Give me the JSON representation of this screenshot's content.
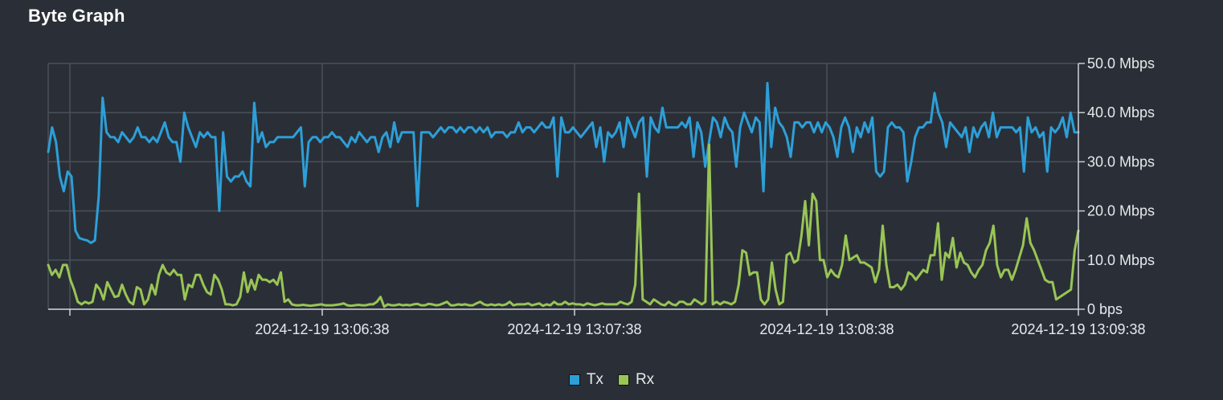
{
  "title": "Byte Graph",
  "chart_data": {
    "type": "line",
    "ylim": [
      0,
      50
    ],
    "y_ticks": [
      0,
      10,
      20,
      30,
      40,
      50
    ],
    "y_tick_labels": [
      "0 bps",
      "10.0 Mbps",
      "20.0 Mbps",
      "30.0 Mbps",
      "40.0 Mbps",
      "50.0 Mbps"
    ],
    "y_axis_side": "right",
    "x_ticks": [
      "2024-12-19 13:06:38",
      "2024-12-19 13:07:38",
      "2024-12-19 13:08:38",
      "2024-12-19 13:09:38"
    ],
    "grid": true,
    "legend_position": "bottom-center",
    "series": [
      {
        "name": "Tx",
        "color": "#2d9fd8",
        "values": [
          32,
          37,
          34,
          27,
          24,
          28,
          27,
          16,
          14.5,
          14.2,
          14,
          13.5,
          14,
          23,
          43,
          36,
          35,
          35,
          34,
          36,
          35,
          34,
          35,
          37,
          35,
          35,
          34,
          35,
          34,
          36,
          38,
          35,
          34,
          34,
          30,
          40,
          37,
          35,
          33,
          36,
          35,
          36,
          35,
          35,
          20,
          36,
          27,
          26,
          27,
          27,
          28,
          26,
          25,
          42,
          34,
          36,
          33,
          34,
          34,
          35,
          35,
          35,
          35,
          35,
          36,
          37,
          25,
          34,
          35,
          35,
          34,
          35,
          35,
          36,
          35,
          35,
          34,
          33,
          35,
          34,
          36,
          35,
          34,
          35,
          35,
          32,
          35,
          36,
          33,
          38,
          34,
          36,
          36,
          36,
          36,
          21,
          36,
          36,
          36,
          35,
          36,
          37,
          36,
          37,
          37,
          36,
          37,
          36,
          37,
          37,
          36,
          37,
          36,
          37,
          35,
          36,
          36,
          36,
          35,
          36,
          36,
          38,
          36,
          37,
          37,
          36,
          37,
          38,
          37,
          37,
          39,
          27,
          39,
          36,
          36,
          37,
          36,
          35,
          36,
          37,
          38,
          33,
          37,
          30,
          36,
          35,
          36,
          38,
          33,
          39,
          37,
          35,
          38,
          39,
          27,
          39,
          37,
          36,
          41,
          37,
          37,
          37,
          37,
          38,
          37,
          39,
          31,
          38,
          36,
          29,
          34,
          39,
          38,
          35,
          39,
          37,
          36,
          29,
          37,
          40,
          38,
          36,
          39,
          38,
          24,
          46,
          33,
          41,
          38,
          37,
          35,
          31,
          38,
          38,
          37,
          38,
          38,
          36,
          38,
          36,
          38,
          37,
          35,
          31,
          37,
          39,
          37,
          32,
          37,
          35,
          38,
          36,
          39,
          28,
          27,
          28,
          37,
          38,
          37,
          37,
          36,
          26,
          30,
          35,
          37,
          37,
          38,
          38,
          44,
          40,
          38,
          33,
          38,
          37,
          36,
          35,
          37,
          32,
          37,
          35,
          37,
          38,
          35,
          40,
          35,
          37,
          37,
          37,
          37,
          36,
          37,
          28,
          39,
          36,
          37,
          35,
          36,
          28,
          37,
          36,
          37,
          39,
          35,
          40,
          36,
          36
        ]
      },
      {
        "name": "Rx",
        "color": "#99c555",
        "values": [
          9,
          7,
          8,
          6.5,
          9,
          9,
          6,
          4,
          1.5,
          1,
          1.5,
          1.2,
          1.5,
          5,
          4,
          2,
          5.5,
          4,
          2.5,
          2.7,
          5,
          3,
          1.5,
          1,
          4.5,
          4,
          1,
          2,
          5,
          3,
          7,
          9,
          7.5,
          7,
          8,
          7,
          7,
          2,
          5,
          4.5,
          7,
          7,
          5,
          3.5,
          3,
          7,
          6,
          4,
          1,
          1,
          0.8,
          1,
          2.5,
          7.5,
          3.5,
          6,
          4,
          7,
          6,
          6,
          5.5,
          6,
          5,
          7.5,
          1.5,
          2,
          1,
          0.8,
          0.8,
          0.9,
          0.8,
          0.7,
          0.8,
          0.9,
          1,
          0.8,
          0.8,
          0.8,
          0.9,
          1,
          1.2,
          0.8,
          0.7,
          0.8,
          0.9,
          0.8,
          0.8,
          1,
          1,
          1.5,
          2.5,
          0.5,
          1,
          0.8,
          0.8,
          1,
          0.8,
          0.9,
          0.8,
          1,
          1.1,
          0.8,
          0.8,
          1.1,
          1,
          0.8,
          0.9,
          1.2,
          1.5,
          0.8,
          0.8,
          1,
          0.9,
          1,
          0.8,
          0.8,
          1.2,
          1.5,
          1,
          0.8,
          1,
          0.8,
          1,
          0.8,
          1,
          1.5,
          0.8,
          1,
          1,
          1,
          1.2,
          0.8,
          1,
          1.2,
          0.7,
          1,
          0.8,
          1.5,
          1,
          1,
          1.5,
          1,
          1.2,
          1,
          1,
          0.8,
          1.2,
          1,
          0.8,
          1,
          1.2,
          1,
          1,
          1,
          1,
          1.5,
          1.2,
          1,
          1.5,
          5,
          23.5,
          2,
          1.5,
          1,
          2,
          1.5,
          1,
          0.8,
          1.5,
          1,
          0.8,
          1.5,
          1.5,
          1,
          1,
          2,
          1.5,
          1,
          1.5,
          33.5,
          1,
          1.5,
          1,
          1.5,
          1.3,
          1,
          1.5,
          5,
          12,
          11.5,
          7,
          7.5,
          7.5,
          2,
          1,
          2,
          9.5,
          4,
          1,
          1.5,
          11,
          11.5,
          9.5,
          10,
          15,
          22,
          13,
          23.5,
          22,
          10,
          10,
          6.5,
          8,
          7,
          6.5,
          9,
          15,
          10,
          10.5,
          11,
          9.5,
          9.5,
          9,
          8.5,
          5.5,
          8,
          17,
          9,
          4.5,
          4.5,
          5,
          4,
          5,
          7.5,
          7,
          6,
          7,
          8,
          7.5,
          11,
          11,
          17.5,
          6,
          11.5,
          10.5,
          14.5,
          8.5,
          11.5,
          9.5,
          9,
          7.5,
          6.5,
          8,
          9,
          12,
          13.5,
          17,
          9,
          6.5,
          8,
          8,
          6,
          8,
          10.5,
          13,
          18.5,
          13.5,
          12,
          10,
          8,
          6,
          5.5,
          5.5,
          2,
          2.5,
          3,
          3.5,
          4,
          12,
          16
        ]
      }
    ]
  },
  "legend": {
    "tx_label": "Tx",
    "rx_label": "Rx"
  }
}
